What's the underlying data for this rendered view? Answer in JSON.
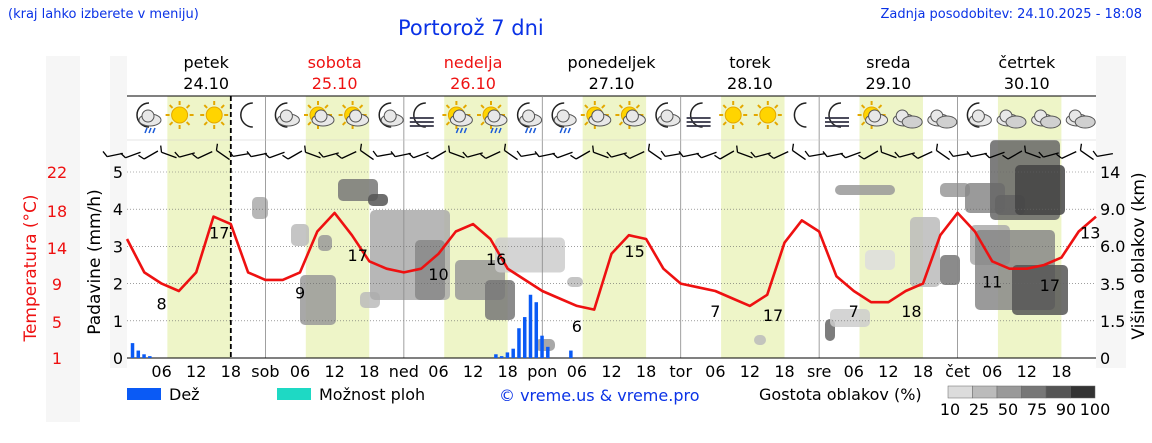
{
  "header": {
    "hint": "(kraj lahko izberete v meniju)",
    "title": "Portorož 7 dni",
    "updated": "Zadnja posodobitev: 24.10.2025 - 18:08"
  },
  "colors": {
    "temperature_line": "#ee1111",
    "rain": "#0a5af5",
    "possible_showers": "#1ed9c4",
    "daylight_band": "#eef5c8",
    "weekend_day": "#ee1111",
    "weekday": "#000000",
    "title": "#0a32e6"
  },
  "days": [
    {
      "name": "petek",
      "date": "24.10",
      "weekend": false
    },
    {
      "name": "sobota",
      "date": "25.10",
      "weekend": true
    },
    {
      "name": "nedelja",
      "date": "26.10",
      "weekend": true
    },
    {
      "name": "ponedeljek",
      "date": "27.10",
      "weekend": false
    },
    {
      "name": "torek",
      "date": "28.10",
      "weekend": false
    },
    {
      "name": "sreda",
      "date": "29.10",
      "weekend": false
    },
    {
      "name": "četrtek",
      "date": "30.10",
      "weekend": false
    }
  ],
  "weather_icons": [
    "moon-rain-icon",
    "sun-icon",
    "sun-icon",
    "moon-icon",
    "moon-partly-icon",
    "sun-partly-icon",
    "sun-partly-icon",
    "moon-partly-icon",
    "moon-fog-icon",
    "sun-rain-icon",
    "sun-rain-icon",
    "moon-rain-icon",
    "moon-rain-icon",
    "sun-partly-icon",
    "sun-partly-icon",
    "moon-partly-icon",
    "moon-fog-icon",
    "sun-icon",
    "sun-icon",
    "moon-icon",
    "moon-fog-icon",
    "sun-partly-icon",
    "cloudy-icon",
    "cloudy-icon",
    "moon-partly-icon",
    "cloudy-icon",
    "cloudy-icon",
    "cloudy-icon"
  ],
  "chart_data": {
    "type": "line",
    "x_unit": "hour",
    "x_start": "24.10.2025 00:00",
    "x_end": "31.10.2025 00:00",
    "now_marker": "24.10.2025 18:00",
    "x_tick_labels": [
      "06",
      "12",
      "18",
      "sob",
      "06",
      "12",
      "18",
      "ned",
      "06",
      "12",
      "18",
      "pon",
      "06",
      "12",
      "18",
      "tor",
      "06",
      "12",
      "18",
      "sre",
      "06",
      "12",
      "18",
      "čet",
      "06",
      "12",
      "18"
    ],
    "left_axis": {
      "label": "Padavine (mm/h)",
      "ticks": [
        0,
        1,
        2,
        3,
        4,
        5
      ],
      "ylim": [
        0,
        5.4
      ]
    },
    "temperature_axis": {
      "label": "Temperatura (°C)",
      "ticks": [
        1,
        5,
        9,
        14,
        18,
        22
      ]
    },
    "right_axis": {
      "label": "Višina oblakov (km)",
      "ticks": [
        "0",
        "1.5",
        "3.5",
        "6.0",
        "9.0",
        "14"
      ]
    },
    "temperature": {
      "name": "Temperatura",
      "hours": [
        0,
        3,
        6,
        9,
        12,
        15,
        18,
        21,
        24,
        27,
        30,
        33,
        36,
        39,
        42,
        45,
        48,
        51,
        54,
        57,
        60,
        63,
        66,
        69,
        72,
        75,
        78,
        81,
        84,
        87,
        90,
        93,
        96,
        99,
        102,
        105,
        108,
        111,
        114,
        117,
        120,
        123,
        126,
        129,
        132,
        135,
        138,
        141,
        144,
        147,
        150,
        153,
        156,
        159,
        162,
        165,
        168
      ],
      "values": [
        3.2,
        2.3,
        2.0,
        1.8,
        2.3,
        3.8,
        3.6,
        2.3,
        2.1,
        2.1,
        2.3,
        3.4,
        3.9,
        3.3,
        2.6,
        2.4,
        2.3,
        2.4,
        2.8,
        3.4,
        3.6,
        3.2,
        2.4,
        2.1,
        1.8,
        1.6,
        1.4,
        1.3,
        2.8,
        3.3,
        3.2,
        2.4,
        2.0,
        1.9,
        1.8,
        1.6,
        1.4,
        1.7,
        3.1,
        3.7,
        3.4,
        2.2,
        1.8,
        1.5,
        1.5,
        1.8,
        2.0,
        3.3,
        3.9,
        3.4,
        2.6,
        2.4,
        2.4,
        2.5,
        2.7,
        3.4,
        3.8
      ]
    },
    "temperature_labels": [
      {
        "hour": 6,
        "value": "8"
      },
      {
        "hour": 16,
        "value": "17"
      },
      {
        "hour": 30,
        "value": "9"
      },
      {
        "hour": 40,
        "value": "17"
      },
      {
        "hour": 54,
        "value": "10"
      },
      {
        "hour": 64,
        "value": "16"
      },
      {
        "hour": 78,
        "value": "6"
      },
      {
        "hour": 88,
        "value": "15"
      },
      {
        "hour": 102,
        "value": "7"
      },
      {
        "hour": 112,
        "value": "17"
      },
      {
        "hour": 126,
        "value": "7"
      },
      {
        "hour": 136,
        "value": "18"
      },
      {
        "hour": 150,
        "value": "11"
      },
      {
        "hour": 160,
        "value": "17"
      },
      {
        "hour": 167,
        "value": "13"
      }
    ],
    "rain_mm": {
      "name": "Dež",
      "hours": [
        1,
        2,
        3,
        4,
        64,
        65,
        66,
        67,
        68,
        69,
        70,
        71,
        72,
        73,
        77
      ],
      "values": [
        0.4,
        0.2,
        0.1,
        0.05,
        0.1,
        0.05,
        0.15,
        0.25,
        0.8,
        1.1,
        1.7,
        1.5,
        0.6,
        0.3,
        0.2
      ]
    },
    "legend": {
      "rain": "Dež",
      "possible_showers": "Možnost ploh",
      "cloud_density": "Gostota oblakov (%)",
      "cloud_levels": [
        "10",
        "25",
        "50",
        "75",
        "90",
        "100"
      ],
      "cloud_colors": [
        "#dcdcdc",
        "#bbbbbb",
        "#999999",
        "#777777",
        "#555555",
        "#333333"
      ]
    },
    "credit": "© vreme.us & vreme.pro"
  }
}
